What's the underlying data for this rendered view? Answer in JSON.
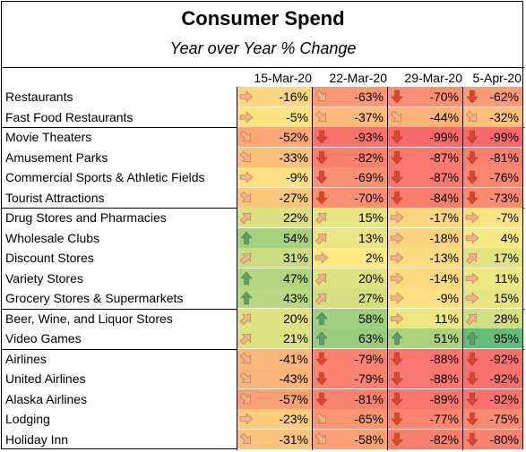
{
  "title": "Consumer Spend",
  "subtitle": "Year over Year % Change",
  "columns": [
    "15-Mar-20",
    "22-Mar-20",
    "29-Mar-20",
    "5-Apr-20"
  ],
  "chart_data": {
    "type": "table",
    "title": "Consumer Spend",
    "subtitle": "Year over Year % Change",
    "columns": [
      "15-Mar-20",
      "22-Mar-20",
      "29-Mar-20",
      "5-Apr-20"
    ],
    "groups": [
      {
        "rows": [
          {
            "label": "Restaurants",
            "values": [
              -16,
              -63,
              -70,
              -62
            ],
            "display": [
              "-16%",
              "-63%",
              "-70%",
              "-62%"
            ],
            "icons": [
              "right-arrow",
              "down-right-arrow",
              "down-arrow",
              "down-arrow"
            ]
          },
          {
            "label": "Fast Food Restaurants",
            "values": [
              -5,
              -37,
              -44,
              -32
            ],
            "display": [
              "-5%",
              "-37%",
              "-44%",
              "-32%"
            ],
            "icons": [
              "right-arrow",
              "down-right-arrow",
              "down-right-arrow",
              "down-right-arrow"
            ]
          }
        ]
      },
      {
        "rows": [
          {
            "label": "Movie Theaters",
            "values": [
              -52,
              -93,
              -99,
              -99
            ],
            "display": [
              "-52%",
              "-93%",
              "-99%",
              "-99%"
            ],
            "icons": [
              "down-right-arrow",
              "down-arrow",
              "down-arrow",
              "down-arrow"
            ]
          },
          {
            "label": "Amusement Parks",
            "values": [
              -33,
              -82,
              -87,
              -81
            ],
            "display": [
              "-33%",
              "-82%",
              "-87%",
              "-81%"
            ],
            "icons": [
              "down-right-arrow",
              "down-arrow",
              "down-arrow",
              "down-arrow"
            ]
          },
          {
            "label": "Commercial Sports & Athletic Fields",
            "values": [
              -9,
              -69,
              -87,
              -76
            ],
            "display": [
              "-9%",
              "-69%",
              "-87%",
              "-76%"
            ],
            "icons": [
              "right-arrow",
              "down-arrow",
              "down-arrow",
              "down-arrow"
            ]
          },
          {
            "label": "Tourist Attractions",
            "values": [
              -27,
              -70,
              -84,
              -73
            ],
            "display": [
              "-27%",
              "-70%",
              "-84%",
              "-73%"
            ],
            "icons": [
              "down-right-arrow",
              "down-arrow",
              "down-arrow",
              "down-arrow"
            ]
          }
        ]
      },
      {
        "rows": [
          {
            "label": "Drug Stores and Pharmacies",
            "values": [
              22,
              15,
              -17,
              -7
            ],
            "display": [
              "22%",
              "15%",
              "-17%",
              "-7%"
            ],
            "icons": [
              "up-right-arrow",
              "up-right-arrow",
              "right-arrow",
              "right-arrow"
            ]
          },
          {
            "label": "Wholesale Clubs",
            "values": [
              54,
              13,
              -18,
              4
            ],
            "display": [
              "54%",
              "13%",
              "-18%",
              "4%"
            ],
            "icons": [
              "up-arrow",
              "up-right-arrow",
              "right-arrow",
              "right-arrow"
            ]
          },
          {
            "label": "Discount Stores",
            "values": [
              31,
              2,
              -13,
              17
            ],
            "display": [
              "31%",
              "2%",
              "-13%",
              "17%"
            ],
            "icons": [
              "up-right-arrow",
              "right-arrow",
              "right-arrow",
              "up-right-arrow"
            ]
          },
          {
            "label": "Variety Stores",
            "values": [
              47,
              20,
              -14,
              11
            ],
            "display": [
              "47%",
              "20%",
              "-14%",
              "11%"
            ],
            "icons": [
              "up-arrow",
              "up-right-arrow",
              "right-arrow",
              "right-arrow"
            ]
          },
          {
            "label": "Grocery Stores & Supermarkets",
            "values": [
              43,
              27,
              -9,
              15
            ],
            "display": [
              "43%",
              "27%",
              "-9%",
              "15%"
            ],
            "icons": [
              "up-arrow",
              "up-right-arrow",
              "right-arrow",
              "right-arrow"
            ]
          }
        ]
      },
      {
        "rows": [
          {
            "label": "Beer, Wine, and Liquor Stores",
            "values": [
              20,
              58,
              11,
              28
            ],
            "display": [
              "20%",
              "58%",
              "11%",
              "28%"
            ],
            "icons": [
              "up-right-arrow",
              "up-arrow",
              "right-arrow",
              "up-right-arrow"
            ]
          },
          {
            "label": "Video Games",
            "values": [
              21,
              63,
              51,
              95
            ],
            "display": [
              "21%",
              "63%",
              "51%",
              "95%"
            ],
            "icons": [
              "up-right-arrow",
              "up-arrow",
              "up-arrow",
              "up-arrow"
            ]
          }
        ]
      },
      {
        "rows": [
          {
            "label": "Airlines",
            "values": [
              -41,
              -79,
              -88,
              -92
            ],
            "display": [
              "-41%",
              "-79%",
              "-88%",
              "-92%"
            ],
            "icons": [
              "down-right-arrow",
              "down-arrow",
              "down-arrow",
              "down-arrow"
            ]
          },
          {
            "label": "United Airlines",
            "values": [
              -43,
              -79,
              -88,
              -92
            ],
            "display": [
              "-43%",
              "-79%",
              "-88%",
              "-92%"
            ],
            "icons": [
              "down-right-arrow",
              "down-arrow",
              "down-arrow",
              "down-arrow"
            ]
          },
          {
            "label": "Alaska Airlines",
            "values": [
              -57,
              -81,
              -89,
              -92
            ],
            "display": [
              "-57%",
              "-81%",
              "-89%",
              "-92%"
            ],
            "icons": [
              "down-right-arrow",
              "down-arrow",
              "down-arrow",
              "down-arrow"
            ]
          },
          {
            "label": "Lodging",
            "values": [
              -23,
              -65,
              -77,
              -75
            ],
            "display": [
              "-23%",
              "-65%",
              "-77%",
              "-75%"
            ],
            "icons": [
              "right-arrow",
              "down-right-arrow",
              "down-arrow",
              "down-arrow"
            ]
          },
          {
            "label": "Holiday Inn",
            "values": [
              -31,
              -58,
              -82,
              -80
            ],
            "display": [
              "-31%",
              "-58%",
              "-82%",
              "-80%"
            ],
            "icons": [
              "down-right-arrow",
              "down-right-arrow",
              "down-arrow",
              "down-arrow"
            ]
          }
        ]
      }
    ],
    "color_scale": {
      "min": -99,
      "mid": 0,
      "max": 95,
      "min_color": "#f8696b",
      "mid_color": "#ffeb84",
      "max_color": "#63be7b"
    },
    "icon_colors": {
      "up": "#5aa06f",
      "right": "#f4b183",
      "down": "#e0452c"
    }
  }
}
